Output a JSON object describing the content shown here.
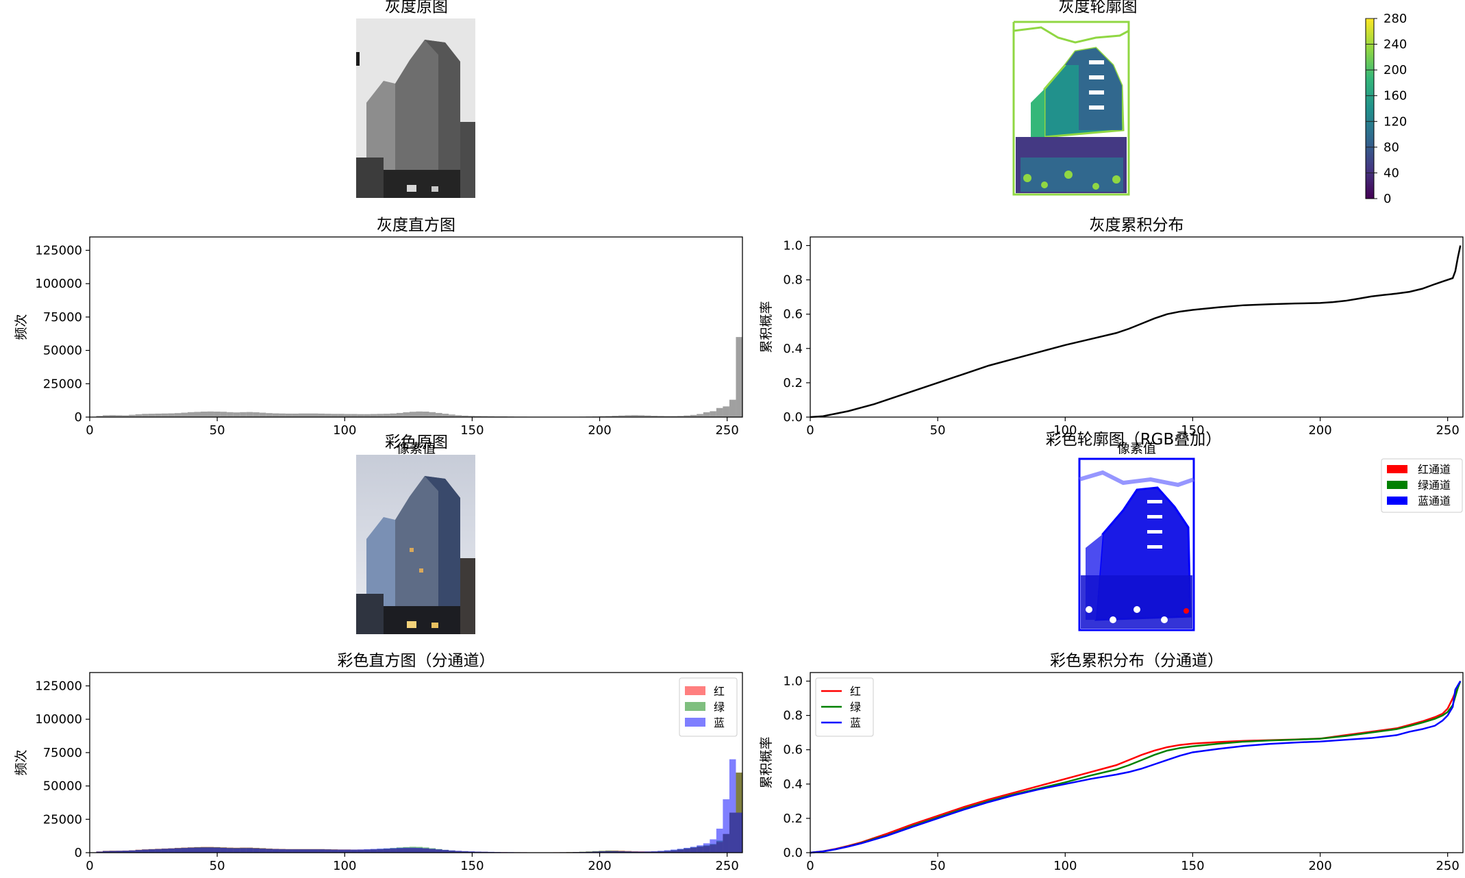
{
  "panels": {
    "gray_image": {
      "title": "灰度原图"
    },
    "gray_contour": {
      "title": "灰度轮廓图",
      "colorbar_ticks": [
        "0",
        "40",
        "80",
        "120",
        "160",
        "200",
        "240",
        "280"
      ],
      "colormap": [
        "#440154",
        "#443983",
        "#31688e",
        "#21918c",
        "#35b779",
        "#90d743",
        "#fde725"
      ]
    },
    "color_image": {
      "title": "彩色原图"
    },
    "color_contour": {
      "title": "彩色轮廓图（RGB叠加）",
      "legend": [
        "红通道",
        "绿通道",
        "蓝通道"
      ],
      "legend_colors": [
        "#ff0000",
        "#008000",
        "#0000ff"
      ]
    }
  },
  "chart_data": [
    {
      "id": "gray_hist",
      "type": "bar",
      "title": "灰度直方图",
      "xlabel": "像素值",
      "ylabel": "频次",
      "xlim": [
        0,
        256
      ],
      "ylim": [
        0,
        135000
      ],
      "xticks": [
        "0",
        "50",
        "100",
        "150",
        "200",
        "250"
      ],
      "yticks": [
        "0",
        "25000",
        "50000",
        "75000",
        "100000",
        "125000"
      ],
      "bin_width": 2.56,
      "color": "#808080",
      "series": [
        {
          "values": [
            200,
            900,
            1400,
            1500,
            1400,
            1300,
            1700,
            2100,
            2400,
            2500,
            2600,
            2700,
            2800,
            3000,
            3300,
            3700,
            3900,
            4100,
            4200,
            4100,
            4000,
            3700,
            3500,
            3700,
            3800,
            3600,
            3300,
            3000,
            2800,
            2700,
            2600,
            2600,
            2700,
            2700,
            2700,
            2600,
            2500,
            2400,
            2400,
            2300,
            2300,
            2200,
            2200,
            2300,
            2400,
            2500,
            2700,
            3100,
            3600,
            4000,
            4200,
            4100,
            3700,
            3100,
            2500,
            1900,
            1400,
            1100,
            900,
            800,
            700,
            600,
            500,
            500,
            400,
            300,
            300,
            200,
            200,
            200,
            200,
            200,
            200,
            200,
            200,
            300,
            400,
            500,
            700,
            800,
            1000,
            1200,
            1400,
            1500,
            1400,
            1200,
            1000,
            900,
            800,
            800,
            900,
            1200,
            1600,
            2300,
            3600,
            4400,
            6800,
            8000,
            13000,
            60000
          ]
        }
      ]
    },
    {
      "id": "gray_cdf",
      "type": "line",
      "title": "灰度累积分布",
      "xlabel": "像素值",
      "ylabel": "累积概率",
      "xlim": [
        0,
        256
      ],
      "ylim": [
        0,
        1.05
      ],
      "xticks": [
        "0",
        "50",
        "100",
        "150",
        "200",
        "250"
      ],
      "yticks": [
        "0.0",
        "0.2",
        "0.4",
        "0.6",
        "0.8",
        "1.0"
      ],
      "series": [
        {
          "color": "#000000",
          "x": [
            0,
            5,
            10,
            15,
            20,
            25,
            30,
            40,
            50,
            60,
            70,
            80,
            90,
            100,
            110,
            120,
            125,
            130,
            135,
            140,
            145,
            150,
            160,
            170,
            180,
            190,
            200,
            205,
            210,
            215,
            220,
            225,
            230,
            235,
            240,
            245,
            248,
            252,
            253,
            254,
            255
          ],
          "y": [
            0.0,
            0.005,
            0.02,
            0.035,
            0.055,
            0.075,
            0.1,
            0.15,
            0.2,
            0.25,
            0.3,
            0.34,
            0.38,
            0.42,
            0.455,
            0.49,
            0.515,
            0.545,
            0.575,
            0.6,
            0.615,
            0.625,
            0.64,
            0.652,
            0.658,
            0.662,
            0.665,
            0.67,
            0.678,
            0.69,
            0.703,
            0.712,
            0.72,
            0.73,
            0.748,
            0.775,
            0.79,
            0.81,
            0.85,
            0.93,
            1.0
          ]
        }
      ]
    },
    {
      "id": "color_hist",
      "type": "bar",
      "title": "彩色直方图（分通道）",
      "xlabel": "",
      "ylabel": "频次",
      "xlim": [
        0,
        256
      ],
      "ylim": [
        0,
        135000
      ],
      "xticks": [
        "0",
        "50",
        "100",
        "150",
        "200",
        "250"
      ],
      "yticks": [
        "0",
        "25000",
        "50000",
        "75000",
        "100000",
        "125000"
      ],
      "bin_width": 2.56,
      "legend": "top-right",
      "series": [
        {
          "name": "红",
          "color": "#ff0000",
          "values": [
            200,
            900,
            1400,
            1500,
            1500,
            1600,
            1800,
            2200,
            2500,
            2700,
            2900,
            3100,
            3300,
            3600,
            3800,
            4000,
            4200,
            4300,
            4300,
            4200,
            4000,
            3800,
            3700,
            3800,
            3800,
            3600,
            3400,
            3100,
            2900,
            2800,
            2700,
            2700,
            2700,
            2700,
            2700,
            2700,
            2600,
            2500,
            2400,
            2400,
            2300,
            2300,
            2300,
            2400,
            2500,
            2700,
            2900,
            3100,
            3300,
            3400,
            3300,
            3100,
            2700,
            2300,
            1900,
            1500,
            1200,
            1000,
            800,
            700,
            600,
            500,
            400,
            400,
            300,
            300,
            300,
            200,
            200,
            200,
            200,
            300,
            300,
            400,
            500,
            600,
            800,
            1000,
            1300,
            1500,
            1600,
            1500,
            1300,
            1100,
            1000,
            900,
            900,
            1000,
            1200,
            1600,
            2200,
            2900,
            3600,
            4400,
            5000,
            6000,
            8000,
            14000,
            30000,
            60000
          ]
        },
        {
          "name": "绿",
          "color": "#008000",
          "values": [
            200,
            800,
            1300,
            1400,
            1400,
            1500,
            1700,
            2100,
            2400,
            2600,
            2800,
            3000,
            3200,
            3500,
            3700,
            3900,
            4100,
            4200,
            4200,
            4100,
            3900,
            3700,
            3600,
            3700,
            3700,
            3500,
            3300,
            3000,
            2800,
            2700,
            2600,
            2600,
            2600,
            2600,
            2600,
            2600,
            2500,
            2400,
            2300,
            2300,
            2200,
            2200,
            2300,
            2500,
            2800,
            3100,
            3500,
            3900,
            4200,
            4400,
            4300,
            3900,
            3300,
            2700,
            2100,
            1600,
            1200,
            1000,
            800,
            700,
            600,
            500,
            400,
            300,
            300,
            300,
            200,
            200,
            200,
            200,
            200,
            200,
            300,
            400,
            500,
            700,
            900,
            1200,
            1400,
            1600,
            1500,
            1300,
            1100,
            900,
            800,
            800,
            900,
            1100,
            1400,
            1900,
            2600,
            3300,
            4000,
            4800,
            5500,
            6500,
            9000,
            14000,
            30000,
            60000
          ]
        },
        {
          "name": "蓝",
          "color": "#0000ff",
          "values": [
            200,
            800,
            1200,
            1300,
            1400,
            1500,
            1700,
            2000,
            2300,
            2500,
            2700,
            2900,
            3100,
            3300,
            3500,
            3700,
            3800,
            3900,
            3900,
            3800,
            3600,
            3400,
            3300,
            3400,
            3400,
            3200,
            3000,
            2800,
            2700,
            2600,
            2500,
            2500,
            2500,
            2500,
            2500,
            2500,
            2400,
            2300,
            2300,
            2300,
            2300,
            2400,
            2600,
            2800,
            3000,
            3200,
            3400,
            3600,
            3700,
            3700,
            3600,
            3300,
            2900,
            2500,
            2100,
            1700,
            1400,
            1200,
            1000,
            800,
            700,
            600,
            500,
            400,
            400,
            300,
            300,
            200,
            200,
            200,
            200,
            200,
            300,
            300,
            400,
            500,
            600,
            800,
            1000,
            1100,
            1100,
            1000,
            900,
            800,
            800,
            900,
            1100,
            1400,
            1800,
            2300,
            2900,
            3600,
            4400,
            5500,
            7000,
            10000,
            18000,
            40000,
            70000,
            30000
          ]
        }
      ]
    },
    {
      "id": "color_cdf",
      "type": "line",
      "title": "彩色累积分布（分通道）",
      "xlabel": "",
      "ylabel": "累积概率",
      "xlim": [
        0,
        256
      ],
      "ylim": [
        0,
        1.05
      ],
      "xticks": [
        "0",
        "50",
        "100",
        "150",
        "200",
        "250"
      ],
      "yticks": [
        "0.0",
        "0.2",
        "0.4",
        "0.6",
        "0.8",
        "1.0"
      ],
      "legend": "top-left",
      "series": [
        {
          "name": "红",
          "color": "#ff0000",
          "x": [
            0,
            5,
            10,
            15,
            20,
            25,
            30,
            40,
            50,
            60,
            70,
            80,
            90,
            100,
            110,
            120,
            125,
            130,
            135,
            140,
            145,
            150,
            160,
            170,
            180,
            190,
            200,
            210,
            220,
            230,
            235,
            240,
            245,
            248,
            250,
            252,
            254,
            255
          ],
          "y": [
            0.0,
            0.008,
            0.022,
            0.04,
            0.06,
            0.085,
            0.11,
            0.165,
            0.215,
            0.265,
            0.31,
            0.35,
            0.39,
            0.43,
            0.47,
            0.51,
            0.54,
            0.57,
            0.595,
            0.615,
            0.628,
            0.636,
            0.645,
            0.652,
            0.656,
            0.66,
            0.665,
            0.685,
            0.705,
            0.725,
            0.745,
            0.765,
            0.79,
            0.81,
            0.84,
            0.9,
            0.97,
            1.0
          ]
        },
        {
          "name": "绿",
          "color": "#008000",
          "x": [
            0,
            5,
            10,
            15,
            20,
            25,
            30,
            40,
            50,
            60,
            70,
            80,
            90,
            100,
            110,
            120,
            125,
            130,
            135,
            140,
            145,
            150,
            160,
            170,
            180,
            190,
            200,
            210,
            220,
            230,
            235,
            240,
            245,
            248,
            250,
            252,
            254,
            255
          ],
          "y": [
            0.0,
            0.007,
            0.02,
            0.037,
            0.056,
            0.08,
            0.1,
            0.155,
            0.205,
            0.255,
            0.3,
            0.34,
            0.375,
            0.41,
            0.45,
            0.485,
            0.51,
            0.54,
            0.57,
            0.595,
            0.61,
            0.62,
            0.635,
            0.647,
            0.654,
            0.659,
            0.664,
            0.68,
            0.7,
            0.72,
            0.738,
            0.758,
            0.78,
            0.8,
            0.82,
            0.86,
            0.96,
            1.0
          ]
        },
        {
          "name": "蓝",
          "color": "#0000ff",
          "x": [
            0,
            5,
            10,
            15,
            20,
            25,
            30,
            40,
            50,
            60,
            70,
            80,
            90,
            100,
            110,
            120,
            125,
            130,
            135,
            140,
            145,
            150,
            160,
            170,
            180,
            190,
            200,
            210,
            220,
            230,
            235,
            240,
            245,
            248,
            250,
            252,
            253,
            255
          ],
          "y": [
            0.0,
            0.007,
            0.02,
            0.036,
            0.054,
            0.076,
            0.098,
            0.15,
            0.2,
            0.25,
            0.295,
            0.335,
            0.37,
            0.4,
            0.43,
            0.455,
            0.47,
            0.49,
            0.515,
            0.54,
            0.565,
            0.585,
            0.605,
            0.622,
            0.634,
            0.642,
            0.648,
            0.658,
            0.668,
            0.685,
            0.705,
            0.72,
            0.74,
            0.77,
            0.8,
            0.85,
            0.95,
            1.0
          ]
        }
      ]
    }
  ]
}
